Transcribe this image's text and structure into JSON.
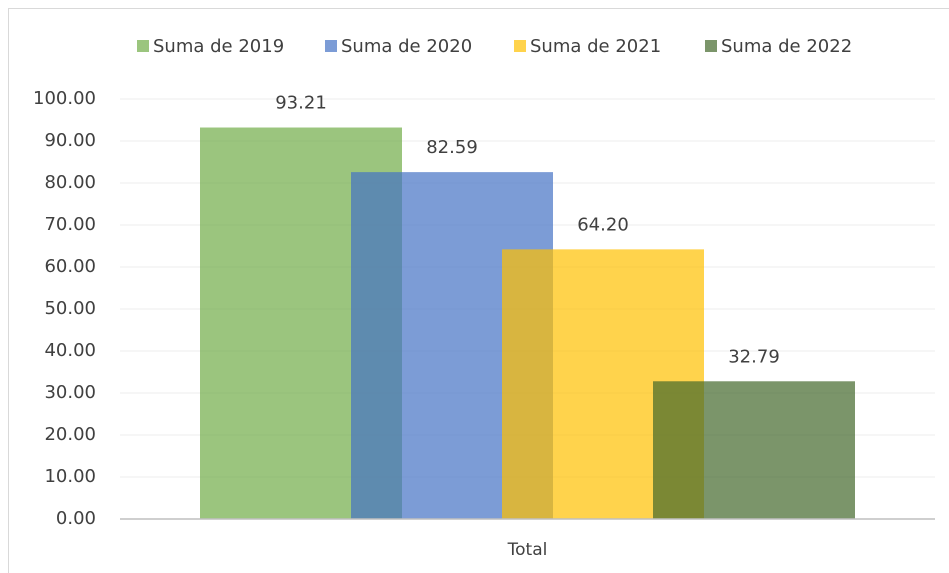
{
  "chart_data": {
    "type": "bar",
    "categories": [
      "Total"
    ],
    "series": [
      {
        "name": "Suma de 2019",
        "color": "#70ad47",
        "values": [
          93.21
        ],
        "value_labels": [
          "93.21"
        ]
      },
      {
        "name": "Suma de 2020",
        "color": "#4472c4",
        "values": [
          82.59
        ],
        "value_labels": [
          "82.59"
        ]
      },
      {
        "name": "Suma de 2021",
        "color": "#ffc000",
        "values": [
          64.2
        ],
        "value_labels": [
          "64.20"
        ]
      },
      {
        "name": "Suma de 2022",
        "color": "#43682b",
        "values": [
          32.79
        ],
        "value_labels": [
          "32.79"
        ]
      }
    ],
    "ylim": [
      0,
      100
    ],
    "yticks": [
      {
        "value": 0,
        "label": "0.00"
      },
      {
        "value": 10,
        "label": "10.00"
      },
      {
        "value": 20,
        "label": "20.00"
      },
      {
        "value": 30,
        "label": "30.00"
      },
      {
        "value": 40,
        "label": "40.00"
      },
      {
        "value": 50,
        "label": "50.00"
      },
      {
        "value": 60,
        "label": "60.00"
      },
      {
        "value": 70,
        "label": "70.00"
      },
      {
        "value": 80,
        "label": "80.00"
      },
      {
        "value": 90,
        "label": "90.00"
      },
      {
        "value": 100,
        "label": "100.00"
      }
    ],
    "grid": true,
    "legend": "top"
  }
}
